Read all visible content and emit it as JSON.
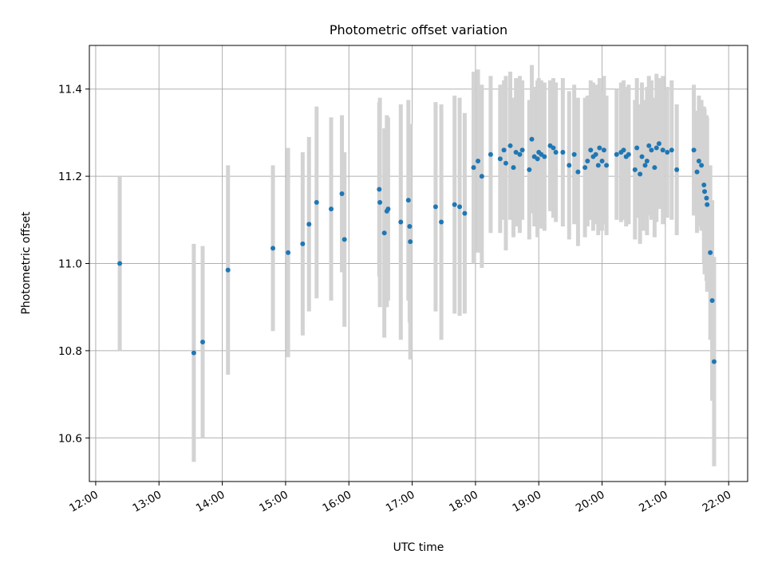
{
  "chart_data": {
    "type": "scatter",
    "title": "Photometric offset variation",
    "xlabel": "UTC time",
    "ylabel": "Photometric offset",
    "x_unit": "hours UTC",
    "xlim": [
      11.9,
      22.3
    ],
    "ylim": [
      10.5,
      11.5
    ],
    "yticks": [
      10.6,
      10.8,
      11.0,
      11.2,
      11.4
    ],
    "ytick_labels": [
      "10.6",
      "10.8",
      "11.0",
      "11.2",
      "11.4"
    ],
    "xticks": [
      12,
      13,
      14,
      15,
      16,
      17,
      18,
      19,
      20,
      21,
      22
    ],
    "xtick_labels": [
      "12:00",
      "13:00",
      "14:00",
      "15:00",
      "16:00",
      "17:00",
      "18:00",
      "19:00",
      "20:00",
      "21:00",
      "22:00"
    ],
    "grid": true,
    "point_color": "#1f77b4",
    "errorbar_color": "#d3d3d3",
    "series": [
      {
        "points": [
          [
            12.38,
            11.0,
            0.2
          ],
          [
            13.55,
            10.795,
            0.25
          ],
          [
            13.69,
            10.82,
            0.22
          ],
          [
            14.09,
            10.985,
            0.24
          ],
          [
            14.8,
            11.035,
            0.19
          ],
          [
            15.04,
            11.025,
            0.24
          ],
          [
            15.27,
            11.045,
            0.21
          ],
          [
            15.37,
            11.09,
            0.2
          ],
          [
            15.49,
            11.14,
            0.22
          ],
          [
            15.72,
            11.125,
            0.21
          ],
          [
            15.89,
            11.16,
            0.18
          ],
          [
            15.93,
            11.055,
            0.2
          ],
          [
            16.48,
            11.17,
            0.2
          ],
          [
            16.49,
            11.14,
            0.24
          ],
          [
            16.56,
            11.07,
            0.24
          ],
          [
            16.6,
            11.12,
            0.22
          ],
          [
            16.62,
            11.125,
            0.21
          ],
          [
            16.82,
            11.095,
            0.27
          ],
          [
            16.94,
            11.145,
            0.23
          ],
          [
            16.96,
            11.085,
            0.22
          ],
          [
            16.97,
            11.05,
            0.27
          ],
          [
            17.37,
            11.13,
            0.24
          ],
          [
            17.46,
            11.095,
            0.27
          ],
          [
            17.67,
            11.135,
            0.25
          ],
          [
            17.75,
            11.13,
            0.25
          ],
          [
            17.83,
            11.115,
            0.23
          ],
          [
            17.97,
            11.22,
            0.22
          ],
          [
            18.04,
            11.235,
            0.21
          ],
          [
            18.1,
            11.2,
            0.21
          ],
          [
            18.24,
            11.25,
            0.18
          ],
          [
            18.39,
            11.24,
            0.17
          ],
          [
            18.45,
            11.26,
            0.16
          ],
          [
            18.48,
            11.23,
            0.2
          ],
          [
            18.55,
            11.27,
            0.17
          ],
          [
            18.6,
            11.22,
            0.16
          ],
          [
            18.64,
            11.255,
            0.17
          ],
          [
            18.7,
            11.25,
            0.18
          ],
          [
            18.74,
            11.26,
            0.16
          ],
          [
            18.85,
            11.215,
            0.16
          ],
          [
            18.89,
            11.285,
            0.17
          ],
          [
            18.93,
            11.245,
            0.16
          ],
          [
            18.98,
            11.24,
            0.18
          ],
          [
            19.0,
            11.255,
            0.17
          ],
          [
            19.04,
            11.25,
            0.17
          ],
          [
            19.09,
            11.245,
            0.17
          ],
          [
            19.18,
            11.27,
            0.15
          ],
          [
            19.23,
            11.265,
            0.16
          ],
          [
            19.27,
            11.255,
            0.16
          ],
          [
            19.38,
            11.255,
            0.17
          ],
          [
            19.48,
            11.225,
            0.17
          ],
          [
            19.56,
            11.25,
            0.16
          ],
          [
            19.62,
            11.21,
            0.17
          ],
          [
            19.73,
            11.22,
            0.16
          ],
          [
            19.77,
            11.235,
            0.15
          ],
          [
            19.82,
            11.26,
            0.16
          ],
          [
            19.86,
            11.245,
            0.17
          ],
          [
            19.9,
            11.25,
            0.16
          ],
          [
            19.94,
            11.225,
            0.16
          ],
          [
            19.96,
            11.265,
            0.16
          ],
          [
            20.0,
            11.235,
            0.16
          ],
          [
            20.03,
            11.26,
            0.17
          ],
          [
            20.07,
            11.225,
            0.16
          ],
          [
            20.23,
            11.25,
            0.15
          ],
          [
            20.3,
            11.255,
            0.16
          ],
          [
            20.34,
            11.26,
            0.16
          ],
          [
            20.38,
            11.245,
            0.16
          ],
          [
            20.42,
            11.25,
            0.16
          ],
          [
            20.52,
            11.215,
            0.16
          ],
          [
            20.55,
            11.265,
            0.16
          ],
          [
            20.6,
            11.205,
            0.16
          ],
          [
            20.63,
            11.245,
            0.17
          ],
          [
            20.68,
            11.225,
            0.15
          ],
          [
            20.71,
            11.235,
            0.17
          ],
          [
            20.74,
            11.27,
            0.16
          ],
          [
            20.78,
            11.26,
            0.16
          ],
          [
            20.83,
            11.22,
            0.16
          ],
          [
            20.86,
            11.265,
            0.17
          ],
          [
            20.9,
            11.275,
            0.15
          ],
          [
            20.96,
            11.26,
            0.17
          ],
          [
            21.03,
            11.255,
            0.15
          ],
          [
            21.1,
            11.26,
            0.16
          ],
          [
            21.18,
            11.215,
            0.15
          ],
          [
            21.45,
            11.26,
            0.15
          ],
          [
            21.5,
            11.21,
            0.14
          ],
          [
            21.53,
            11.235,
            0.15
          ],
          [
            21.57,
            11.225,
            0.15
          ],
          [
            21.61,
            11.18,
            0.18
          ],
          [
            21.62,
            11.165,
            0.19
          ],
          [
            21.65,
            11.15,
            0.19
          ],
          [
            21.66,
            11.135,
            0.2
          ],
          [
            21.71,
            11.025,
            0.2
          ],
          [
            21.74,
            10.915,
            0.23
          ],
          [
            21.77,
            10.775,
            0.24
          ]
        ]
      }
    ]
  }
}
